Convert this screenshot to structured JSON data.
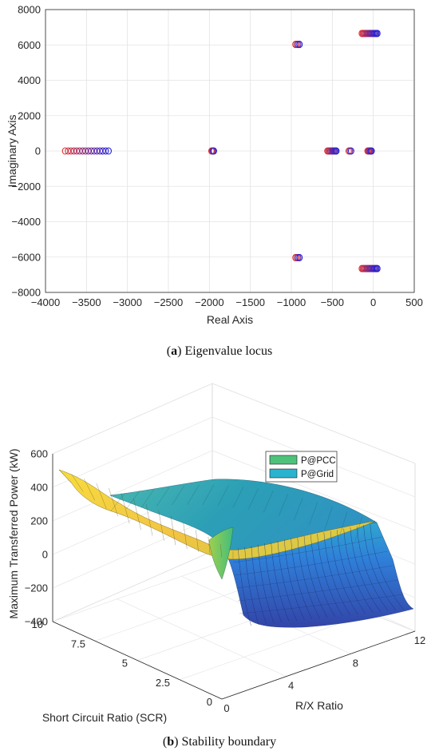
{
  "chart_data": [
    {
      "type": "scatter",
      "xlabel": "Real Axis",
      "ylabel": "Imaginary Axis",
      "xlim": [
        -4000,
        500
      ],
      "ylim": [
        -8000,
        8000
      ],
      "xticks": [
        "−4000",
        "−3500",
        "−3000",
        "−2500",
        "−2000",
        "−1500",
        "−1000",
        "−500",
        "0",
        "500"
      ],
      "yticks": [
        "8000",
        "6000",
        "4000",
        "2000",
        "0",
        "−2000",
        "−4000",
        "−6000",
        "−8000"
      ],
      "grid": true,
      "marker": "circle-open",
      "color_scale": [
        "#e0302f",
        "#2020d8"
      ],
      "clusters": [
        {
          "x_start": -3760,
          "x_end": -3230,
          "y": 0,
          "count": 16
        },
        {
          "x_start": -1975,
          "x_end": -1945,
          "y": 0,
          "count": 4
        },
        {
          "x_start": -950,
          "x_end": -900,
          "y": 6030,
          "count": 4
        },
        {
          "x_start": -950,
          "x_end": -900,
          "y": -6030,
          "count": 4
        },
        {
          "x_start": -140,
          "x_end": 50,
          "y": 6650,
          "count": 16
        },
        {
          "x_start": -140,
          "x_end": 50,
          "y": -6650,
          "count": 16
        },
        {
          "x_start": -560,
          "x_end": -450,
          "y": 0,
          "count": 10
        },
        {
          "x_start": -300,
          "x_end": -270,
          "y": 0,
          "count": 3
        },
        {
          "x_start": -70,
          "x_end": -20,
          "y": 0,
          "count": 6
        }
      ]
    },
    {
      "type": "surface",
      "zlabel": "Maximum Transferred Power (kW)",
      "xlabel": "R/X Ratio",
      "ylabel": "Short Circuit Ratio (SCR)",
      "zticks": [
        "600",
        "400",
        "200",
        "0",
        "−200",
        "−400"
      ],
      "xticks": [
        "0",
        "4",
        "8",
        "12"
      ],
      "yticks": [
        "10",
        "7.5",
        "5",
        "2.5",
        "0"
      ],
      "legend": {
        "position": "top-right",
        "entries": [
          {
            "label": "P@PCC",
            "color": "#4ec27a"
          },
          {
            "label": "P@Grid",
            "color": "#2ab3cf"
          }
        ]
      },
      "colormap": [
        "#30338f",
        "#2f6fd8",
        "#2ab3cf",
        "#44c07a",
        "#a8cf4a",
        "#f5d83a"
      ]
    }
  ],
  "captions": {
    "a_letter": "a",
    "a_text": ") Eigenvalue locus",
    "b_letter": "b",
    "b_text": ") Stability boundary"
  }
}
